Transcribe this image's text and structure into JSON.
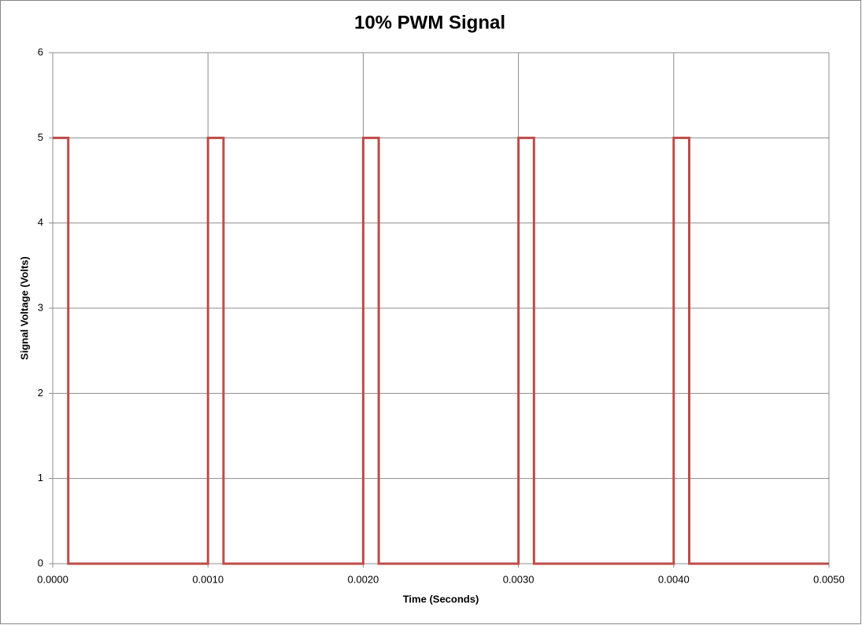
{
  "chart_data": {
    "type": "line",
    "title": "10% PWM Signal",
    "x_label": "Time (Seconds)",
    "y_label": "Signal Voltage (Volts)",
    "x": [
      0,
      0.0001,
      0.0001,
      0.001,
      0.001,
      0.0011,
      0.0011,
      0.002,
      0.002,
      0.0021,
      0.0021,
      0.003,
      0.003,
      0.0031,
      0.0031,
      0.004,
      0.004,
      0.0041,
      0.0041,
      0.005
    ],
    "values": [
      5,
      5,
      0,
      0,
      5,
      5,
      0,
      0,
      5,
      5,
      0,
      0,
      5,
      5,
      0,
      0,
      5,
      5,
      0,
      0
    ],
    "color": "#be4b48",
    "xlim": [
      0,
      0.005
    ],
    "xticks": [
      {
        "value": 0,
        "label": "0.0000"
      },
      {
        "value": 0.001,
        "label": "0.0010"
      },
      {
        "value": 0.002,
        "label": "0.0020"
      },
      {
        "value": 0.003,
        "label": "0.0030"
      },
      {
        "value": 0.004,
        "label": "0.0040"
      },
      {
        "value": 0.005,
        "label": "0.0050"
      }
    ],
    "ylim": [
      0,
      6
    ],
    "yticks": [
      0,
      1,
      2,
      3,
      4,
      5,
      6
    ],
    "grid": true
  }
}
